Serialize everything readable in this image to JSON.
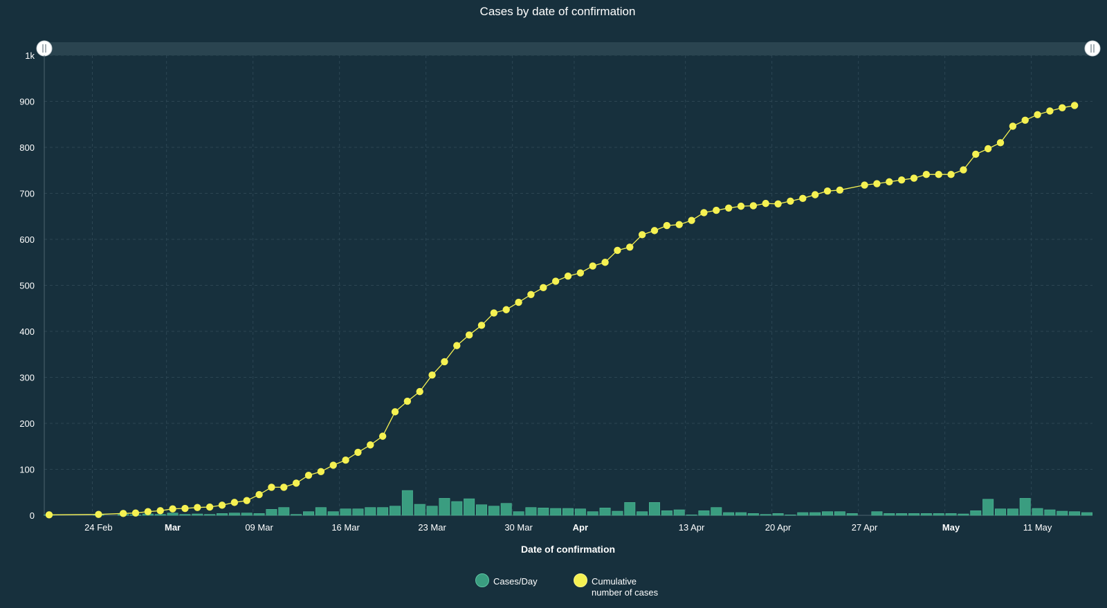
{
  "chart_data": {
    "type": "bar+line",
    "title": "Cases by  date of confirmation",
    "xlabel": "Date of confirmation",
    "ylabel": "",
    "ylim": [
      0,
      1000
    ],
    "y_ticks": [
      "0",
      "100",
      "200",
      "300",
      "400",
      "500",
      "600",
      "700",
      "800",
      "900",
      "1k"
    ],
    "x_ticks": [
      {
        "label": "24 Feb",
        "day": 4,
        "bold": false
      },
      {
        "label": "Mar",
        "day": 10,
        "bold": true
      },
      {
        "label": "09 Mar",
        "day": 17,
        "bold": false
      },
      {
        "label": "16 Mar",
        "day": 24,
        "bold": false
      },
      {
        "label": "23 Mar",
        "day": 31,
        "bold": false
      },
      {
        "label": "30 Mar",
        "day": 38,
        "bold": false
      },
      {
        "label": "Apr",
        "day": 43,
        "bold": true
      },
      {
        "label": "13 Apr",
        "day": 52,
        "bold": false
      },
      {
        "label": "20 Apr",
        "day": 59,
        "bold": false
      },
      {
        "label": "27 Apr",
        "day": 66,
        "bold": false
      },
      {
        "label": "May",
        "day": 73,
        "bold": true
      },
      {
        "label": "11 May",
        "day": 80,
        "bold": false
      }
    ],
    "day_range": [
      0,
      84
    ],
    "series": [
      {
        "name": "Cases/Day",
        "kind": "bar",
        "color": "#3a9d80",
        "points": [
          [
            0,
            1
          ],
          [
            4,
            1
          ],
          [
            6,
            2
          ],
          [
            7,
            1
          ],
          [
            8,
            3
          ],
          [
            9,
            2
          ],
          [
            10,
            5
          ],
          [
            11,
            2
          ],
          [
            12,
            3
          ],
          [
            13,
            2
          ],
          [
            14,
            4
          ],
          [
            15,
            5
          ],
          [
            16,
            5
          ],
          [
            17,
            4
          ],
          [
            18,
            13
          ],
          [
            19,
            17
          ],
          [
            20,
            2
          ],
          [
            21,
            8
          ],
          [
            22,
            17
          ],
          [
            23,
            8
          ],
          [
            24,
            14
          ],
          [
            25,
            14
          ],
          [
            26,
            17
          ],
          [
            27,
            17
          ],
          [
            28,
            20
          ],
          [
            29,
            54
          ],
          [
            30,
            24
          ],
          [
            31,
            20
          ],
          [
            32,
            37
          ],
          [
            33,
            30
          ],
          [
            34,
            36
          ],
          [
            35,
            23
          ],
          [
            36,
            20
          ],
          [
            37,
            26
          ],
          [
            38,
            8
          ],
          [
            39,
            17
          ],
          [
            40,
            16
          ],
          [
            41,
            15
          ],
          [
            42,
            15
          ],
          [
            43,
            14
          ],
          [
            44,
            8
          ],
          [
            45,
            16
          ],
          [
            46,
            9
          ],
          [
            47,
            28
          ],
          [
            48,
            8
          ],
          [
            49,
            28
          ],
          [
            50,
            10
          ],
          [
            51,
            12
          ],
          [
            52,
            1
          ],
          [
            53,
            10
          ],
          [
            54,
            17
          ],
          [
            55,
            6
          ],
          [
            56,
            6
          ],
          [
            57,
            4
          ],
          [
            58,
            2
          ],
          [
            59,
            4
          ],
          [
            60,
            1
          ],
          [
            61,
            6
          ],
          [
            62,
            6
          ],
          [
            63,
            8
          ],
          [
            64,
            8
          ],
          [
            65,
            4
          ],
          [
            66,
            0
          ],
          [
            67,
            8
          ],
          [
            68,
            4
          ],
          [
            69,
            4
          ],
          [
            70,
            4
          ],
          [
            71,
            4
          ],
          [
            72,
            4
          ],
          [
            73,
            4
          ],
          [
            74,
            3
          ],
          [
            75,
            10
          ],
          [
            76,
            35
          ],
          [
            77,
            14
          ],
          [
            78,
            14
          ],
          [
            79,
            37
          ],
          [
            80,
            15
          ],
          [
            81,
            12
          ],
          [
            82,
            9
          ],
          [
            83,
            8
          ],
          [
            84,
            6
          ]
        ]
      },
      {
        "name": "Cumulative number of cases",
        "kind": "line",
        "color": "#f5f152",
        "points": [
          [
            0,
            1
          ],
          [
            4,
            2
          ],
          [
            6,
            4
          ],
          [
            7,
            5
          ],
          [
            8,
            8
          ],
          [
            9,
            10
          ],
          [
            10,
            14
          ],
          [
            11,
            15
          ],
          [
            12,
            17
          ],
          [
            13,
            18
          ],
          [
            14,
            22
          ],
          [
            15,
            28
          ],
          [
            16,
            32
          ],
          [
            17,
            45
          ],
          [
            18,
            61
          ],
          [
            19,
            61
          ],
          [
            20,
            70
          ],
          [
            21,
            87
          ],
          [
            22,
            95
          ],
          [
            23,
            109
          ],
          [
            24,
            120
          ],
          [
            25,
            137
          ],
          [
            26,
            153
          ],
          [
            27,
            172
          ],
          [
            28,
            225
          ],
          [
            29,
            248
          ],
          [
            30,
            269
          ],
          [
            31,
            305
          ],
          [
            32,
            334
          ],
          [
            33,
            369
          ],
          [
            34,
            392
          ],
          [
            35,
            413
          ],
          [
            36,
            440
          ],
          [
            37,
            447
          ],
          [
            38,
            463
          ],
          [
            39,
            480
          ],
          [
            40,
            495
          ],
          [
            41,
            509
          ],
          [
            42,
            520
          ],
          [
            43,
            527
          ],
          [
            44,
            542
          ],
          [
            45,
            550
          ],
          [
            46,
            576
          ],
          [
            47,
            583
          ],
          [
            48,
            610
          ],
          [
            49,
            619
          ],
          [
            50,
            630
          ],
          [
            51,
            632
          ],
          [
            52,
            641
          ],
          [
            53,
            658
          ],
          [
            54,
            663
          ],
          [
            55,
            668
          ],
          [
            56,
            672
          ],
          [
            57,
            673
          ],
          [
            58,
            678
          ],
          [
            59,
            677
          ],
          [
            60,
            683
          ],
          [
            61,
            689
          ],
          [
            62,
            697
          ],
          [
            63,
            705
          ],
          [
            64,
            707
          ],
          [
            66,
            718
          ],
          [
            67,
            721
          ],
          [
            68,
            725
          ],
          [
            69,
            729
          ],
          [
            70,
            733
          ],
          [
            71,
            741
          ],
          [
            72,
            741
          ],
          [
            73,
            741
          ],
          [
            74,
            751
          ],
          [
            75,
            785
          ],
          [
            76,
            797
          ],
          [
            77,
            810
          ],
          [
            78,
            846
          ],
          [
            79,
            859
          ],
          [
            80,
            871
          ],
          [
            81,
            879
          ],
          [
            82,
            886
          ],
          [
            83,
            891
          ]
        ]
      }
    ],
    "legend": [
      {
        "label_lines": [
          "Cases/Day"
        ],
        "color": "#3a9d80"
      },
      {
        "label_lines": [
          "Cumulative",
          "number of cases"
        ],
        "color": "#f5f152"
      }
    ],
    "legend_position": "bottom-center",
    "grid": true
  }
}
